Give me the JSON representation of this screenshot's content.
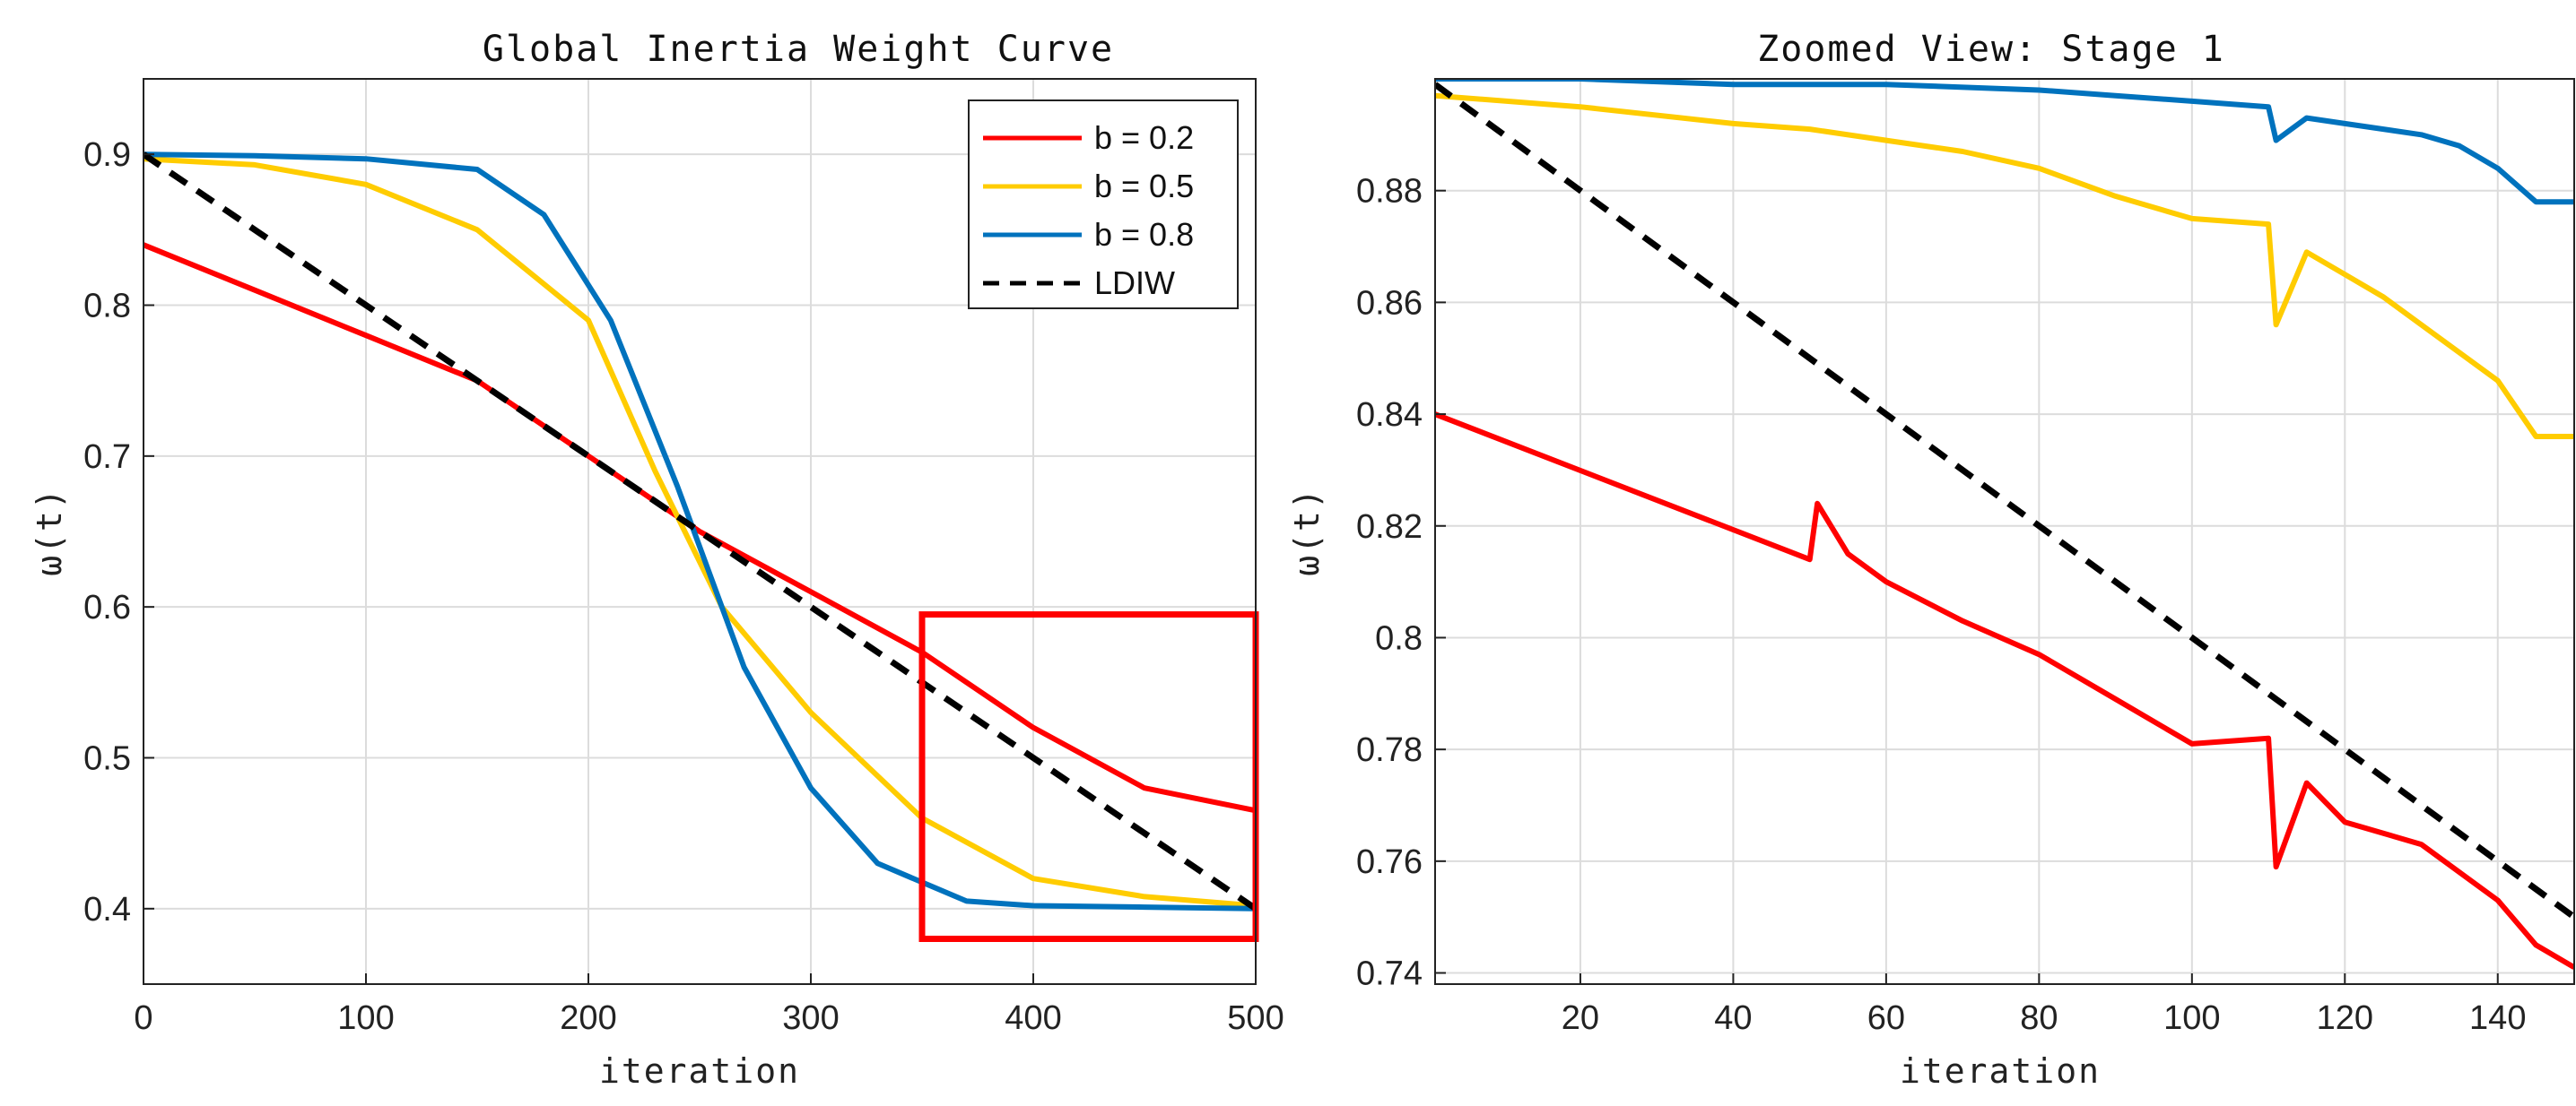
{
  "chart_data": [
    {
      "type": "line",
      "title": "Global Inertia Weight Curve",
      "xlabel": "iteration",
      "ylabel": "ω(t)",
      "xlim": [
        0,
        500
      ],
      "ylim": [
        0.35,
        0.95
      ],
      "xticks": [
        0,
        100,
        200,
        300,
        400,
        500
      ],
      "yticks": [
        0.4,
        0.5,
        0.6,
        0.7,
        0.8,
        0.9
      ],
      "xtick_labels": [
        "0",
        "100",
        "200",
        "300",
        "400",
        "500"
      ],
      "ytick_labels": [
        "0.4",
        "0.5",
        "0.6",
        "0.7",
        "0.8",
        "0.9"
      ],
      "grid": true,
      "legend_position": "top-right",
      "highlight_box": {
        "x": [
          350,
          500
        ],
        "y": [
          0.38,
          0.595
        ],
        "color": "#ff0000"
      },
      "series": [
        {
          "name": "b = 0.2",
          "color": "#ff0000",
          "x": [
            0,
            50,
            100,
            150,
            200,
            250,
            300,
            350,
            400,
            450,
            500
          ],
          "y": [
            0.84,
            0.81,
            0.78,
            0.75,
            0.7,
            0.65,
            0.61,
            0.57,
            0.52,
            0.48,
            0.465
          ]
        },
        {
          "name": "b = 0.5",
          "color": "#ffcc00",
          "x": [
            0,
            50,
            100,
            150,
            200,
            230,
            260,
            300,
            350,
            400,
            450,
            500
          ],
          "y": [
            0.897,
            0.893,
            0.88,
            0.85,
            0.79,
            0.69,
            0.6,
            0.53,
            0.46,
            0.42,
            0.408,
            0.402
          ]
        },
        {
          "name": "b = 0.8",
          "color": "#0072bd",
          "x": [
            0,
            50,
            100,
            150,
            180,
            210,
            240,
            270,
            300,
            330,
            370,
            400,
            450,
            500
          ],
          "y": [
            0.9,
            0.899,
            0.897,
            0.89,
            0.86,
            0.79,
            0.68,
            0.56,
            0.48,
            0.43,
            0.405,
            0.402,
            0.401,
            0.4
          ]
        },
        {
          "name": "LDIW",
          "color": "#000000",
          "dash": true,
          "x": [
            0,
            500
          ],
          "y": [
            0.9,
            0.4
          ]
        }
      ]
    },
    {
      "type": "line",
      "title": "Zoomed View: Stage 1",
      "xlabel": "iteration",
      "ylabel": "ω(t)",
      "xlim": [
        1,
        150
      ],
      "ylim": [
        0.738,
        0.9
      ],
      "xticks": [
        20,
        40,
        60,
        80,
        100,
        120,
        140
      ],
      "yticks": [
        0.74,
        0.76,
        0.78,
        0.8,
        0.82,
        0.84,
        0.86,
        0.88
      ],
      "xtick_labels": [
        "20",
        "40",
        "60",
        "80",
        "100",
        "120",
        "140"
      ],
      "ytick_labels": [
        "0.74",
        "0.76",
        "0.78",
        "0.8",
        "0.82",
        "0.84",
        "0.86",
        "0.88"
      ],
      "grid": true,
      "series": [
        {
          "name": "b = 0.2",
          "color": "#ff0000",
          "x": [
            1,
            50,
            51,
            55,
            60,
            70,
            80,
            90,
            100,
            110,
            111,
            115,
            120,
            130,
            140,
            145,
            150
          ],
          "y": [
            0.84,
            0.814,
            0.824,
            0.815,
            0.81,
            0.803,
            0.797,
            0.789,
            0.781,
            0.782,
            0.759,
            0.774,
            0.767,
            0.763,
            0.753,
            0.745,
            0.741
          ]
        },
        {
          "name": "b = 0.5",
          "color": "#ffcc00",
          "x": [
            1,
            20,
            40,
            50,
            60,
            70,
            80,
            90,
            100,
            110,
            111,
            115,
            120,
            125,
            130,
            140,
            145,
            150
          ],
          "y": [
            0.897,
            0.895,
            0.892,
            0.891,
            0.889,
            0.887,
            0.884,
            0.879,
            0.875,
            0.874,
            0.856,
            0.869,
            0.865,
            0.861,
            0.856,
            0.846,
            0.836,
            0.836
          ]
        },
        {
          "name": "b = 0.8",
          "color": "#0072bd",
          "x": [
            1,
            20,
            40,
            60,
            80,
            90,
            100,
            110,
            111,
            115,
            120,
            130,
            135,
            140,
            145,
            150
          ],
          "y": [
            0.9,
            0.9,
            0.899,
            0.899,
            0.898,
            0.897,
            0.896,
            0.895,
            0.889,
            0.893,
            0.892,
            0.89,
            0.888,
            0.884,
            0.878,
            0.878
          ]
        },
        {
          "name": "LDIW",
          "color": "#000000",
          "dash": true,
          "x": [
            1,
            150
          ],
          "y": [
            0.899,
            0.75
          ]
        }
      ]
    }
  ]
}
